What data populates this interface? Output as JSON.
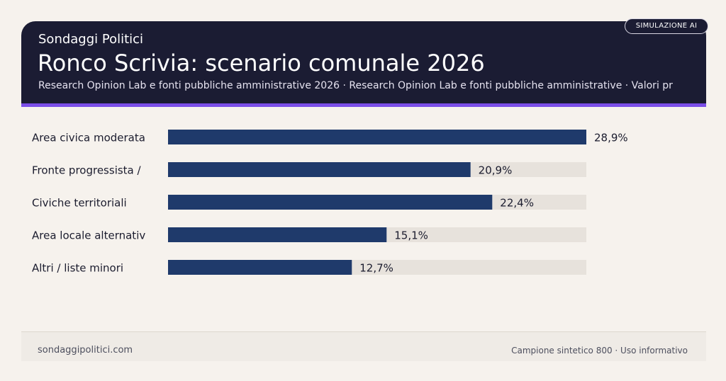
{
  "header": {
    "kicker": "Sondaggi Politici",
    "title": "Ronco Scrivia: scenario comunale 2026",
    "subtitle": "Research Opinion Lab e fonti pubbliche amministrative 2026 · Research Opinion Lab e fonti pubbliche amministrative · Valori pr",
    "badge": "SIMULAZIONE AI"
  },
  "colors": {
    "header_bg": "#1b1c33",
    "accent": "#7b4ee8",
    "bar": "#1f3a6b",
    "track": "#e7e2dc",
    "page_bg": "#f6f2ed"
  },
  "chart_data": {
    "type": "bar",
    "orientation": "horizontal",
    "categories": [
      "Area civica moderata",
      "Fronte progressista /",
      "Civiche territoriali",
      "Area locale alternativ",
      "Altri / liste minori"
    ],
    "values": [
      28.9,
      20.9,
      22.4,
      15.1,
      12.7
    ],
    "value_labels": [
      "28,9%",
      "20,9%",
      "22,4%",
      "15,1%",
      "12,7%"
    ],
    "unit": "%",
    "xlim": [
      0,
      28.9
    ],
    "grid": false,
    "legend": "none"
  },
  "footer": {
    "left": "sondaggipolitici.com",
    "right": "Campione sintetico 800 · Uso informativo"
  }
}
